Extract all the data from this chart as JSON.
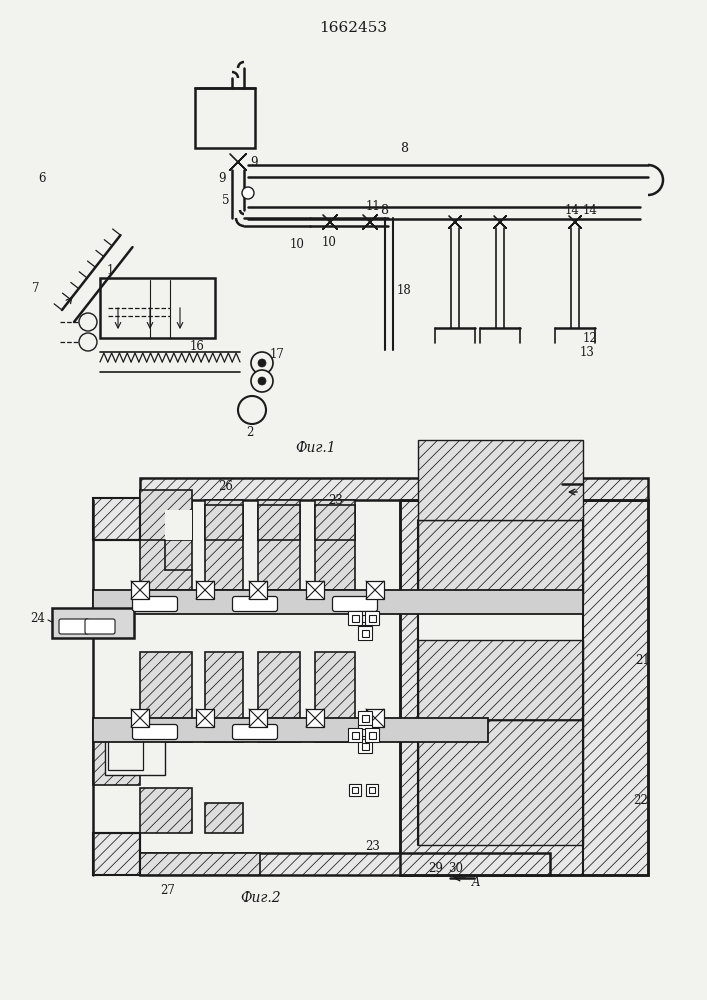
{
  "title": "1662453",
  "fig1_label": "Фиг.1",
  "fig2_label": "Фиг.2",
  "bg": "#f2f2ef",
  "lc": "#1a1a1a"
}
